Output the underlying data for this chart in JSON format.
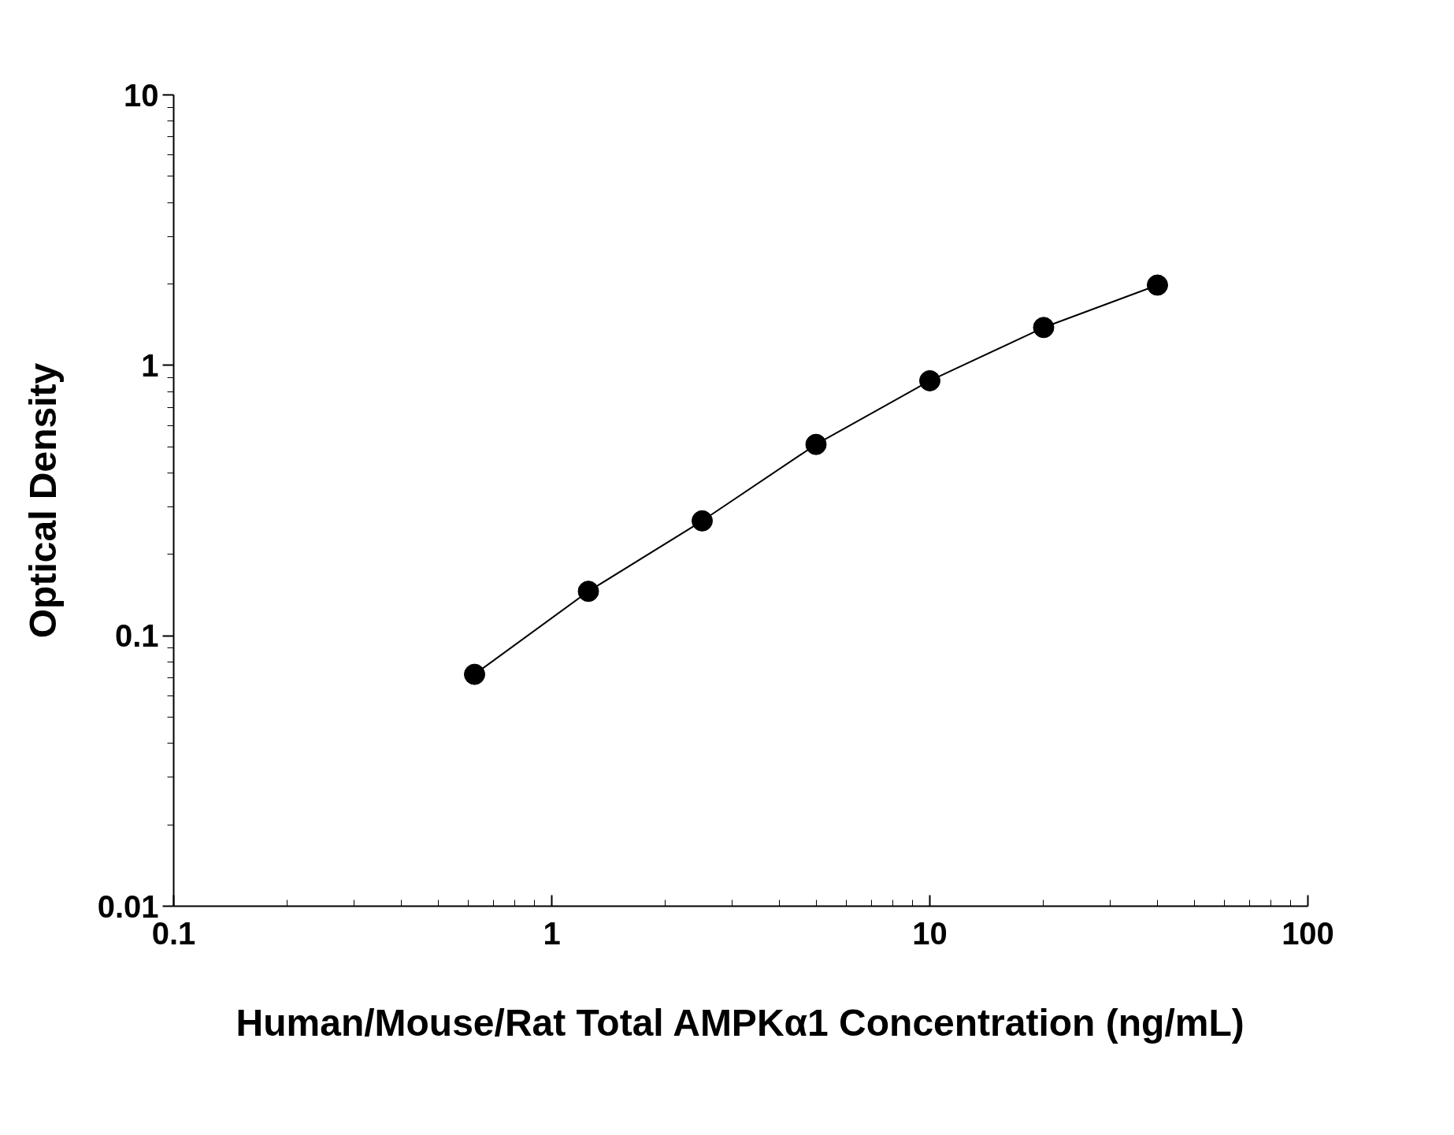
{
  "chart_data": {
    "type": "line",
    "xlabel": "Human/Mouse/Rat Total AMPKα1 Concentration (ng/mL)",
    "ylabel": "Optical Density",
    "x": [
      0.625,
      1.25,
      2.5,
      5,
      10,
      20,
      40
    ],
    "series": [
      {
        "color": "#000000",
        "values": [
          0.072,
          0.146,
          0.266,
          0.51,
          0.877,
          1.38,
          1.98
        ]
      }
    ],
    "log": "xy",
    "xlim": [
      0.1,
      100
    ],
    "ylim": [
      0.01,
      10
    ],
    "xticks": [
      0.1,
      1,
      10,
      100
    ],
    "yticks": [
      0.01,
      0.1,
      1,
      10
    ],
    "grid": false,
    "marker": "circle",
    "line_style": "solid"
  }
}
